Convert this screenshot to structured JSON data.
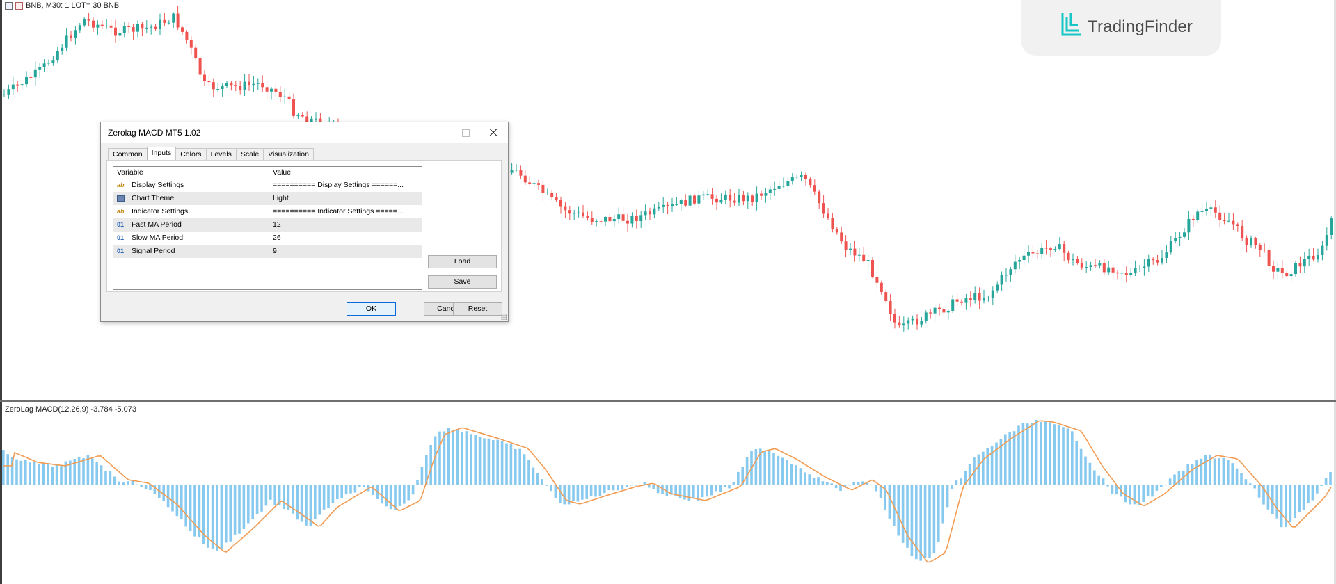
{
  "main_chart": {
    "symbol_label": "BNB, M30:  1 LOT= 30 BNB",
    "colors": {
      "bull": "#26a69a",
      "bear": "#ef5350"
    }
  },
  "sub_chart": {
    "indicator_label": "ZeroLag MACD(12,26,9) -3.784 -5.073",
    "colors": {
      "histogram": "#87c9ef",
      "signal": "#f29b52"
    }
  },
  "logo": {
    "text": "TradingFinder",
    "accent": "#18c6c6"
  },
  "dialog": {
    "title": "Zerolag MACD MT5 1.02",
    "tabs": [
      "Common",
      "Inputs",
      "Colors",
      "Levels",
      "Scale",
      "Visualization"
    ],
    "active_tab": "Inputs",
    "grid": {
      "headers": {
        "variable": "Variable",
        "value": "Value"
      },
      "rows": [
        {
          "icon": "ab",
          "variable": "Display Settings",
          "value": "========== Display Settings ======..."
        },
        {
          "icon": "theme",
          "variable": "Chart Theme",
          "value": "Light"
        },
        {
          "icon": "ab",
          "variable": "Indicator Settings",
          "value": "========== Indicator Settings =====..."
        },
        {
          "icon": "01",
          "variable": "Fast MA Period",
          "value": "12"
        },
        {
          "icon": "01",
          "variable": "Slow MA Period",
          "value": "26"
        },
        {
          "icon": "01",
          "variable": "Signal Period",
          "value": "9"
        }
      ]
    },
    "buttons": {
      "load": "Load",
      "save": "Save",
      "ok": "OK",
      "cancel": "Cancel",
      "reset": "Reset"
    }
  }
}
